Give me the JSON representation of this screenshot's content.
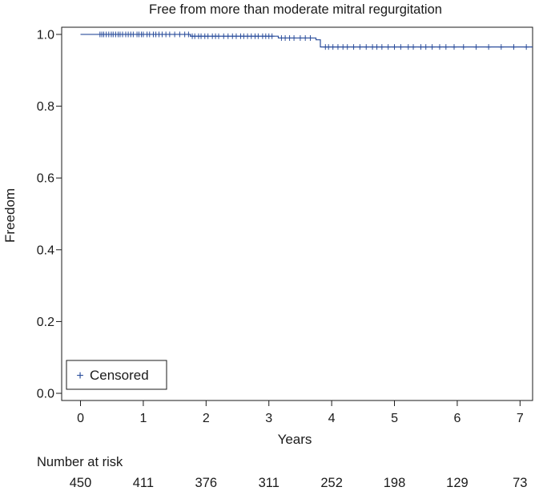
{
  "chart_data": {
    "type": "line",
    "title": "Free from more than moderate mitral regurgitation",
    "xlabel": "Years",
    "ylabel": "Freedom",
    "xlim": [
      -0.3,
      7.2
    ],
    "ylim": [
      -0.02,
      1.02
    ],
    "x_ticks": [
      0,
      1,
      2,
      3,
      4,
      5,
      6,
      7
    ],
    "y_ticks": [
      0.0,
      0.2,
      0.4,
      0.6,
      0.8,
      1.0
    ],
    "y_tick_labels": [
      "0.0",
      "0.2",
      "0.4",
      "0.6",
      "0.8",
      "1.0"
    ],
    "grid": false,
    "legend": {
      "position": "bottom-left",
      "label": "Censored",
      "marker": "+"
    },
    "color": "#2a4d9b",
    "series": [
      {
        "step_x": [
          0,
          1.75,
          3.1,
          3.15,
          3.75,
          3.82,
          7.2
        ],
        "step_y": [
          1.0,
          0.995,
          0.995,
          0.99,
          0.985,
          0.965,
          0.965
        ],
        "censored_x": [
          0.31,
          0.34,
          0.37,
          0.41,
          0.45,
          0.49,
          0.52,
          0.56,
          0.6,
          0.63,
          0.67,
          0.72,
          0.76,
          0.8,
          0.84,
          0.9,
          0.93,
          0.97,
          1.0,
          1.06,
          1.1,
          1.16,
          1.2,
          1.25,
          1.3,
          1.36,
          1.42,
          1.5,
          1.58,
          1.66,
          1.72,
          1.78,
          1.82,
          1.88,
          1.92,
          1.98,
          2.03,
          2.1,
          2.15,
          2.2,
          2.28,
          2.35,
          2.42,
          2.48,
          2.55,
          2.6,
          2.66,
          2.72,
          2.78,
          2.83,
          2.9,
          2.95,
          3.0,
          3.05,
          3.2,
          3.26,
          3.33,
          3.4,
          3.5,
          3.58,
          3.66,
          3.9,
          3.95,
          4.02,
          4.1,
          4.18,
          4.25,
          4.35,
          4.45,
          4.55,
          4.65,
          4.72,
          4.8,
          4.9,
          5.0,
          5.1,
          5.22,
          5.3,
          5.42,
          5.5,
          5.6,
          5.72,
          5.82,
          5.95,
          6.1,
          6.3,
          6.5,
          6.7,
          6.9,
          7.1
        ]
      }
    ],
    "risk_table": {
      "label": "Number at risk",
      "times": [
        0,
        1,
        2,
        3,
        4,
        5,
        6,
        7
      ],
      "values": [
        "450",
        "411",
        "376",
        "311",
        "252",
        "198",
        "129",
        "73"
      ]
    }
  }
}
